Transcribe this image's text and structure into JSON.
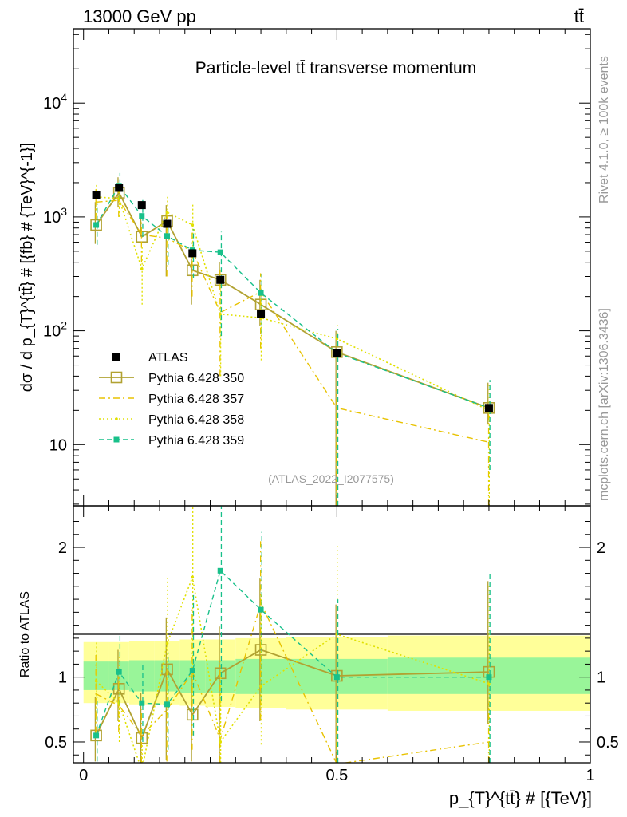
{
  "header": {
    "energy_label": "13000 GeV pp",
    "process_label": "tt̄"
  },
  "side_labels": {
    "rivet": "Rivet 4.1.0, ≥ 100k events",
    "mcplots": "mcplots.cern.ch [arXiv:1306.3436]"
  },
  "chart_data": [
    {
      "type": "line",
      "panel": "main",
      "title": "Particle-level tt̄ transverse momentum",
      "analysis_id": "(ATLAS_2022_I2077575)",
      "xlabel": "p_{T}^{tt̄} # [{TeV}]",
      "ylabel": "dσ / d p_{T}^{tt̄} # [{fb} # {TeV}^{-1}]",
      "yscale": "log",
      "xlim": [
        -0.02,
        1.0
      ],
      "ylim": [
        2.9,
        45000
      ],
      "major_ticks": [
        {
          "value": 10,
          "label": "10"
        },
        {
          "value": 100,
          "label": "10^2"
        },
        {
          "value": 1000,
          "label": "10^3"
        },
        {
          "value": 10000,
          "label": "10^4"
        }
      ],
      "legend": {
        "placement": "bottom-left",
        "entries": [
          "ATLAS",
          "Pythia 6.428 350",
          "Pythia 6.428 357",
          "Pythia 6.428 358",
          "Pythia 6.428 359"
        ]
      },
      "x": [
        0.025,
        0.07,
        0.115,
        0.165,
        0.215,
        0.27,
        0.35,
        0.5,
        0.8
      ],
      "data": {
        "name": "ATLAS",
        "color": "#000000",
        "values": [
          1550,
          1800,
          1270,
          870,
          480,
          280,
          140,
          64,
          21
        ]
      },
      "series": [
        {
          "name": "Pythia 6.428 350",
          "color": "#b1a232",
          "style": "solid",
          "marker": "open-square",
          "values": [
            850,
            1630,
            670,
            920,
            340,
            280,
            170,
            65,
            21
          ],
          "err_low": [
            270,
            420,
            0,
            620,
            170,
            0,
            60,
            65,
            6
          ],
          "err_high": [
            500,
            600,
            300,
            350,
            90,
            120,
            110,
            35,
            14
          ]
        },
        {
          "name": "Pythia 6.428 357",
          "color": "#e8c200",
          "style": "dash-dot",
          "marker": "none",
          "values": [
            1350,
            1400,
            700,
            650,
            500,
            145,
            220,
            21,
            10.5
          ],
          "err_low": [
            400,
            400,
            300,
            350,
            300,
            105,
            150,
            21,
            10.5
          ],
          "err_high": [
            400,
            400,
            200,
            400,
            250,
            200,
            100,
            10,
            8
          ]
        },
        {
          "name": "Pythia 6.428 358",
          "color": "#e0e000",
          "style": "dotted",
          "marker": "dot",
          "values": [
            1500,
            1450,
            350,
            1100,
            850,
            140,
            130,
            85,
            20
          ],
          "err_low": [
            450,
            450,
            180,
            500,
            450,
            100,
            75,
            85,
            20
          ],
          "err_high": [
            450,
            500,
            200,
            400,
            450,
            100,
            100,
            30,
            15
          ]
        },
        {
          "name": "Pythia 6.428 359",
          "color": "#18c08a",
          "style": "dashed",
          "marker": "filled-square",
          "values": [
            850,
            1880,
            1020,
            680,
            510,
            490,
            215,
            64,
            21
          ],
          "err_low": [
            280,
            470,
            350,
            300,
            220,
            400,
            120,
            64,
            15
          ],
          "err_high": [
            450,
            550,
            400,
            280,
            270,
            250,
            100,
            40,
            16
          ]
        }
      ]
    },
    {
      "type": "line",
      "panel": "ratio",
      "ylabel": "Ratio to ATLAS",
      "xlabel": "p_{T}^{tt̄} # [{TeV}]",
      "xlim": [
        -0.02,
        1.0
      ],
      "ylim": [
        0.34,
        2.32
      ],
      "yticks": [
        0.5,
        1,
        2
      ],
      "ytick_labels": [
        "0.5",
        "1",
        "2"
      ],
      "xticks": [
        0,
        0.5,
        1
      ],
      "xtick_labels": [
        "0",
        "0.5",
        "1"
      ],
      "bands": {
        "bin_edges": [
          0,
          0.05,
          0.09,
          0.14,
          0.19,
          0.24,
          0.3,
          0.4,
          0.6,
          1.0
        ],
        "inner_low": [
          0.9,
          0.9,
          0.89,
          0.89,
          0.88,
          0.88,
          0.87,
          0.87,
          0.87
        ],
        "inner_high": [
          1.12,
          1.12,
          1.13,
          1.13,
          1.13,
          1.13,
          1.14,
          1.14,
          1.15
        ],
        "outer_low": [
          0.8,
          0.8,
          0.79,
          0.79,
          0.78,
          0.77,
          0.76,
          0.75,
          0.74
        ],
        "outer_high": [
          1.27,
          1.27,
          1.28,
          1.28,
          1.29,
          1.29,
          1.3,
          1.31,
          1.32
        ],
        "inner_color": "#99f599",
        "outer_color": "#ffff99"
      },
      "x": [
        0.025,
        0.07,
        0.115,
        0.165,
        0.215,
        0.27,
        0.35,
        0.5,
        0.8
      ],
      "series": [
        {
          "name": "Pythia 6.428 350",
          "color": "#b1a232",
          "style": "solid",
          "marker": "open-square",
          "values": [
            0.55,
            0.91,
            0.53,
            1.06,
            0.71,
            1.03,
            1.21,
            1.01,
            1.04
          ],
          "err_low": [
            0.2,
            0.25,
            0.25,
            0.7,
            0.36,
            0.69,
            0.55,
            1.0,
            0.4
          ],
          "err_high": [
            0.3,
            0.3,
            0.35,
            0.4,
            0.3,
            0.36,
            0.55,
            0.55,
            0.7
          ]
        },
        {
          "name": "Pythia 6.428 357",
          "color": "#e8c200",
          "style": "dash-dot",
          "marker": "none",
          "values": [
            0.87,
            0.78,
            0.55,
            0.75,
            1.04,
            0.52,
            1.57,
            0.33,
            0.5
          ],
          "err_low": [
            0.3,
            0.2,
            0.25,
            0.4,
            0.6,
            0.35,
            0.9,
            0.33,
            0.5
          ],
          "err_high": [
            0.3,
            0.25,
            0.2,
            0.3,
            0.5,
            0.6,
            0.5,
            0.4,
            0.3
          ]
        },
        {
          "name": "Pythia 6.428 358",
          "color": "#e0e000",
          "style": "dotted",
          "marker": "dot",
          "values": [
            0.97,
            0.8,
            0.28,
            1.26,
            1.77,
            0.5,
            0.93,
            1.33,
            0.95
          ],
          "err_low": [
            0.3,
            0.3,
            0.2,
            0.55,
            0.95,
            0.3,
            0.45,
            1.3,
            0.9
          ],
          "err_high": [
            0.3,
            0.35,
            0.2,
            0.5,
            0.6,
            0.55,
            0.7,
            0.7,
            0.75
          ]
        },
        {
          "name": "Pythia 6.428 359",
          "color": "#18c08a",
          "style": "dashed",
          "marker": "filled-square",
          "values": [
            0.55,
            1.04,
            0.8,
            0.79,
            1.05,
            1.82,
            1.52,
            1.0,
            1.0
          ],
          "err_low": [
            0.2,
            0.25,
            0.3,
            0.35,
            0.5,
            1.0,
            0.7,
            1.0,
            0.7
          ],
          "err_high": [
            0.3,
            0.3,
            0.3,
            0.4,
            0.6,
            0.9,
            0.6,
            0.6,
            0.8
          ]
        }
      ]
    }
  ]
}
